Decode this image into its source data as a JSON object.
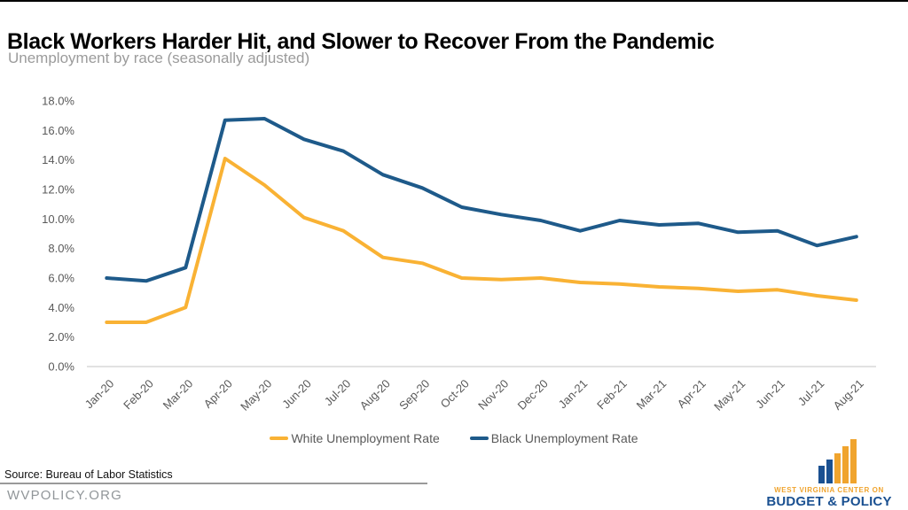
{
  "chart_data": {
    "type": "line",
    "title": "Black Workers Harder Hit, and Slower to Recover From the Pandemic",
    "subtitle": "Unemployment by race (seasonally adjusted)",
    "categories": [
      "Jan-20",
      "Feb-20",
      "Mar-20",
      "Apr-20",
      "May-20",
      "Jun-20",
      "Jul-20",
      "Aug-20",
      "Sep-20",
      "Oct-20",
      "Nov-20",
      "Dec-20",
      "Jan-21",
      "Feb-21",
      "Mar-21",
      "Apr-21",
      "May-21",
      "Jun-21",
      "Jul-21",
      "Aug-21"
    ],
    "series": [
      {
        "name": "White Unemployment Rate",
        "color": "#F9B234",
        "values": [
          3.0,
          3.0,
          4.0,
          14.1,
          12.3,
          10.1,
          9.2,
          7.4,
          7.0,
          6.0,
          5.9,
          6.0,
          5.7,
          5.6,
          5.4,
          5.3,
          5.1,
          5.2,
          4.8,
          4.5
        ]
      },
      {
        "name": "Black Unemployment Rate",
        "color": "#1E5A8A",
        "values": [
          6.0,
          5.8,
          6.7,
          16.7,
          16.8,
          15.4,
          14.6,
          13.0,
          12.1,
          10.8,
          10.3,
          9.9,
          9.2,
          9.9,
          9.6,
          9.7,
          9.1,
          9.2,
          8.2,
          8.8
        ]
      }
    ],
    "ylim": [
      0,
      18
    ],
    "yticks": [
      "0.0%",
      "2.0%",
      "4.0%",
      "6.0%",
      "8.0%",
      "10.0%",
      "12.0%",
      "14.0%",
      "16.0%",
      "18.0%"
    ],
    "grid": false,
    "legend_position": "bottom",
    "xlabel": "",
    "ylabel": ""
  },
  "footer": {
    "source": "Source: Bureau of Labor Statistics",
    "website": "WVPOLICY.ORG"
  },
  "logo": {
    "line1": "WEST VIRGINIA CENTER ON",
    "line2": "BUDGET & POLICY",
    "blue": "#1A5091",
    "gold": "#F0A42E"
  }
}
